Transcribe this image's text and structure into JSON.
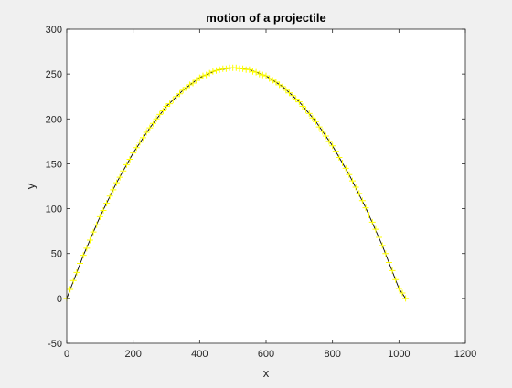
{
  "chart_data": {
    "type": "line",
    "title": "motion of a projectile",
    "xlabel": "x",
    "ylabel": "y",
    "xlim": [
      0,
      1200
    ],
    "ylim": [
      -50,
      300
    ],
    "xticks": [
      0,
      200,
      400,
      600,
      800,
      1000,
      1200
    ],
    "yticks": [
      -50,
      0,
      50,
      100,
      150,
      200,
      250,
      300
    ],
    "grid": false,
    "legend": "none",
    "background_color": "#ffffff",
    "figure_color": "#f0f0f0",
    "series": [
      {
        "style": "line",
        "color": "#000000",
        "x": [
          0,
          50,
          100,
          150,
          200,
          250,
          300,
          350,
          400,
          450,
          500,
          550,
          600,
          650,
          700,
          750,
          800,
          850,
          900,
          950,
          1000,
          1020
        ],
        "y": [
          0,
          48,
          91,
          129,
          162,
          190,
          214,
          232,
          246,
          254,
          257,
          255,
          248,
          236,
          219,
          197,
          170,
          138,
          101,
          59,
          11,
          0
        ]
      },
      {
        "style": "markers",
        "marker": "plus",
        "color": "#ffff00",
        "x": [
          0,
          10,
          20,
          30,
          40,
          50,
          60,
          70,
          80,
          90,
          100,
          110,
          120,
          130,
          140,
          150,
          160,
          170,
          180,
          190,
          200,
          210,
          220,
          230,
          240,
          250,
          260,
          270,
          280,
          290,
          300,
          310,
          320,
          330,
          340,
          350,
          360,
          370,
          380,
          390,
          400,
          410,
          420,
          430,
          440,
          450,
          460,
          470,
          480,
          490,
          500,
          510,
          520,
          530,
          540,
          550,
          560,
          570,
          580,
          590,
          600,
          610,
          620,
          630,
          640,
          650,
          660,
          670,
          680,
          690,
          700,
          710,
          720,
          730,
          740,
          750,
          760,
          770,
          780,
          790,
          800,
          810,
          820,
          830,
          840,
          850,
          860,
          870,
          880,
          890,
          900,
          910,
          920,
          930,
          940,
          950,
          960,
          970,
          980,
          990,
          1000,
          1010,
          1020
        ],
        "y": [
          0,
          10,
          20,
          29,
          39,
          48,
          56,
          65,
          74,
          82,
          91,
          98,
          106,
          114,
          121,
          129,
          135,
          142,
          149,
          155,
          162,
          168,
          174,
          179,
          185,
          190,
          195,
          200,
          205,
          209,
          214,
          217,
          221,
          225,
          228,
          232,
          235,
          238,
          240,
          243,
          246,
          248,
          249,
          251,
          253,
          254,
          255,
          256,
          256,
          257,
          257,
          257,
          256,
          256,
          255,
          255,
          253,
          252,
          250,
          249,
          248,
          245,
          243,
          241,
          238,
          236,
          232,
          229,
          226,
          222,
          219,
          214,
          210,
          206,
          201,
          197,
          191,
          186,
          181,
          175,
          170,
          164,
          157,
          151,
          145,
          138,
          131,
          124,
          117,
          109,
          101,
          93,
          85,
          77,
          68,
          59,
          50,
          40,
          31,
          21,
          11,
          6,
          0
        ]
      }
    ]
  }
}
